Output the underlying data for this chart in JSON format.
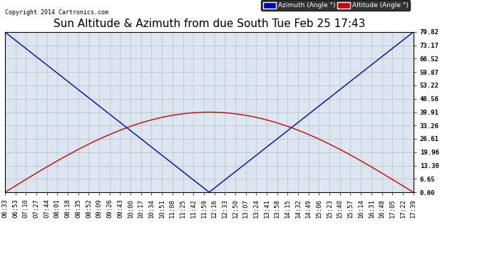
{
  "title": "Sun Altitude & Azimuth from due South Tue Feb 25 17:43",
  "copyright": "Copyright 2014 Cartronics.com",
  "yticks": [
    0.0,
    6.65,
    13.3,
    19.96,
    26.61,
    33.26,
    39.91,
    46.56,
    53.22,
    59.87,
    66.52,
    73.17,
    79.82
  ],
  "xtick_labels": [
    "06:33",
    "06:53",
    "07:10",
    "07:27",
    "07:44",
    "08:01",
    "08:18",
    "08:35",
    "08:52",
    "09:09",
    "09:26",
    "09:43",
    "10:00",
    "10:17",
    "10:34",
    "10:51",
    "11:08",
    "11:25",
    "11:42",
    "11:59",
    "12:16",
    "12:33",
    "12:50",
    "13:07",
    "13:24",
    "13:41",
    "13:58",
    "14:15",
    "14:32",
    "14:49",
    "15:06",
    "15:23",
    "15:40",
    "15:57",
    "16:14",
    "16:31",
    "16:48",
    "17:05",
    "17:22",
    "17:39"
  ],
  "azimuth_color": "#0000bb",
  "altitude_color": "#cc0000",
  "background_color": "#ffffff",
  "plot_bg_color": "#dce6f0",
  "grid_color": "#aaaaaa",
  "legend_azimuth_bg": "#0000bb",
  "legend_altitude_bg": "#cc0000",
  "title_fontsize": 11,
  "tick_fontsize": 6.5,
  "ymax": 79.82,
  "ymin": 0.0
}
